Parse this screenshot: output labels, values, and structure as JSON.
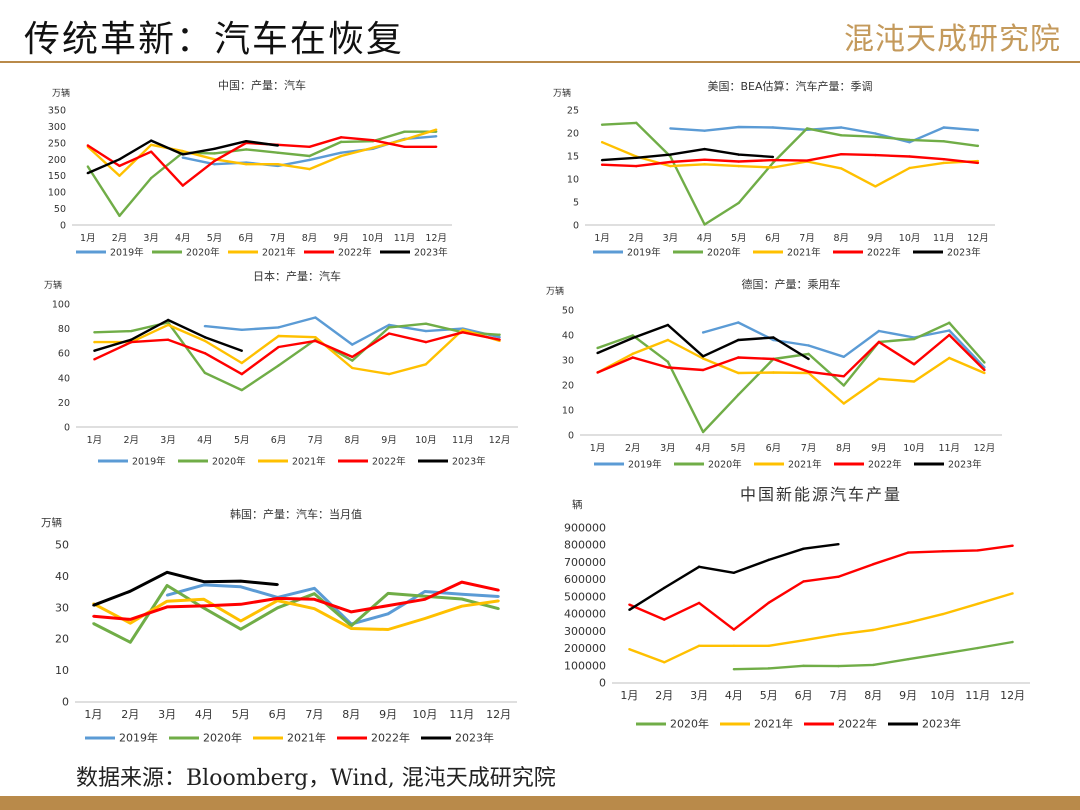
{
  "header": {
    "title": "传统革新：汽车在恢复",
    "logo_text": "混沌天成研究院"
  },
  "footer": {
    "source": "数据来源：Bloomberg，Wind, 混沌天成研究院"
  },
  "colors": {
    "2019年": "#5b9bd5",
    "2020年": "#70ad47",
    "2021年": "#ffc000",
    "2022年": "#ff0000",
    "2023年": "#000000",
    "accent": "#b98a4a"
  },
  "chart_data": [
    {
      "type": "line",
      "title": "中国：产量：汽车",
      "ylabel": "万辆",
      "categories": [
        "1月",
        "2月",
        "3月",
        "4月",
        "5月",
        "6月",
        "7月",
        "8月",
        "9月",
        "10月",
        "11月",
        "12月"
      ],
      "ylim": [
        0,
        350
      ],
      "yticks": [
        0,
        50,
        100,
        150,
        200,
        250,
        300,
        350
      ],
      "series": [
        {
          "name": "2019年",
          "values": [
            null,
            null,
            null,
            205,
            185,
            190,
            180,
            198,
            220,
            232,
            262,
            270
          ]
        },
        {
          "name": "2020年",
          "values": [
            178,
            28,
            143,
            220,
            218,
            230,
            220,
            210,
            253,
            255,
            284,
            284
          ]
        },
        {
          "name": "2021年",
          "values": [
            238,
            150,
            244,
            225,
            200,
            185,
            185,
            170,
            210,
            235,
            260,
            290
          ]
        },
        {
          "name": "2022年",
          "values": [
            242,
            180,
            223,
            120,
            195,
            250,
            244,
            238,
            267,
            258,
            238,
            238
          ]
        },
        {
          "name": "2023年",
          "values": [
            158,
            200,
            257,
            215,
            232,
            255,
            242,
            null,
            null,
            null,
            null,
            null
          ]
        }
      ]
    },
    {
      "type": "line",
      "title": "美国：BEA估算：汽车产量：季调",
      "ylabel": "万辆",
      "categories": [
        "1月",
        "2月",
        "3月",
        "4月",
        "5月",
        "6月",
        "7月",
        "8月",
        "9月",
        "10月",
        "11月",
        "12月"
      ],
      "ylim": [
        0,
        25
      ],
      "yticks": [
        0,
        5,
        10,
        15,
        20,
        25
      ],
      "series": [
        {
          "name": "2019年",
          "values": [
            null,
            null,
            21,
            20.5,
            21.3,
            21.2,
            20.7,
            21.2,
            19.9,
            18,
            21.2,
            20.6
          ]
        },
        {
          "name": "2020年",
          "values": [
            21.8,
            22.2,
            14.9,
            0.1,
            4.8,
            13.5,
            21,
            19.5,
            19.2,
            18.5,
            18.2,
            17.2
          ]
        },
        {
          "name": "2021年",
          "values": [
            18,
            14.9,
            12.8,
            13.2,
            12.8,
            12.5,
            13.8,
            12.3,
            8.4,
            12.4,
            13.5,
            13.9
          ]
        },
        {
          "name": "2022年",
          "values": [
            13.1,
            12.8,
            13.7,
            14.2,
            13.8,
            14.1,
            14,
            15.4,
            15.2,
            14.9,
            14.3,
            13.5
          ]
        },
        {
          "name": "2023年",
          "values": [
            14.1,
            14.6,
            15.3,
            16.5,
            15.3,
            14.8,
            null,
            null,
            null,
            null,
            null,
            null
          ]
        }
      ]
    },
    {
      "type": "line",
      "title": "日本：产量：汽车",
      "ylabel": "万辆",
      "categories": [
        "1月",
        "2月",
        "3月",
        "4月",
        "5月",
        "6月",
        "7月",
        "8月",
        "9月",
        "10月",
        "11月",
        "12月"
      ],
      "ylim": [
        0,
        100
      ],
      "yticks": [
        0,
        20,
        40,
        60,
        80,
        100
      ],
      "series": [
        {
          "name": "2019年",
          "values": [
            null,
            null,
            null,
            82,
            79,
            81,
            89,
            67,
            83,
            78,
            80,
            73
          ]
        },
        {
          "name": "2020年",
          "values": [
            77,
            78,
            85,
            44,
            30,
            50,
            71,
            54,
            81,
            84,
            77,
            75
          ]
        },
        {
          "name": "2021年",
          "values": [
            69,
            69,
            83,
            70,
            52,
            74,
            73,
            48,
            43,
            51,
            79,
            70
          ]
        },
        {
          "name": "2022年",
          "values": [
            55,
            69,
            71,
            60,
            43,
            65,
            70,
            57,
            76,
            69,
            77,
            71
          ]
        },
        {
          "name": "2023年",
          "values": [
            62,
            71,
            87,
            73,
            62,
            null,
            null,
            null,
            null,
            null,
            null,
            null
          ]
        }
      ]
    },
    {
      "type": "line",
      "title": "德国：产量：乘用车",
      "ylabel": "万辆",
      "categories": [
        "1月",
        "2月",
        "3月",
        "4月",
        "5月",
        "6月",
        "7月",
        "8月",
        "9月",
        "10月",
        "11月",
        "12月"
      ],
      "ylim": [
        0,
        50
      ],
      "yticks": [
        0,
        10,
        20,
        30,
        40,
        50
      ],
      "series": [
        {
          "name": "2019年",
          "values": [
            null,
            null,
            null,
            41,
            45,
            38,
            35.8,
            31.3,
            41.6,
            39,
            41.8,
            27
          ]
        },
        {
          "name": "2020年",
          "values": [
            34.8,
            39.8,
            29.3,
            1.2,
            16.1,
            30.4,
            32.4,
            19.8,
            37.2,
            38.4,
            44.9,
            29
          ]
        },
        {
          "name": "2021年",
          "values": [
            25,
            32.5,
            38,
            30.6,
            24.8,
            25,
            24.8,
            12.6,
            22.5,
            21.4,
            30.8,
            24.8
          ]
        },
        {
          "name": "2022年",
          "values": [
            25,
            31,
            27,
            26,
            31,
            30.4,
            25.3,
            23.5,
            37.2,
            28.3,
            40,
            26
          ]
        },
        {
          "name": "2023年",
          "values": [
            32.8,
            38.8,
            44,
            31.5,
            38,
            39,
            30.4,
            null,
            null,
            null,
            null,
            null
          ]
        }
      ]
    },
    {
      "type": "line",
      "title": "韩国：产量：汽车：当月值",
      "ylabel": "万辆",
      "categories": [
        "1月",
        "2月",
        "3月",
        "4月",
        "5月",
        "6月",
        "7月",
        "8月",
        "9月",
        "10月",
        "11月",
        "12月"
      ],
      "ylim": [
        0,
        50
      ],
      "yticks": [
        0,
        10,
        20,
        30,
        40,
        50
      ],
      "series": [
        {
          "name": "2019年",
          "values": [
            null,
            null,
            34,
            37.3,
            36.7,
            33.3,
            36.2,
            24.8,
            28.1,
            35.2,
            34.3,
            33.6
          ]
        },
        {
          "name": "2020年",
          "values": [
            25,
            19,
            37.1,
            29.9,
            23.2,
            30,
            34.5,
            24.3,
            34.6,
            33.7,
            32.8,
            29.7
          ]
        },
        {
          "name": "2021年",
          "values": [
            31.3,
            25.1,
            32.1,
            32.7,
            25.8,
            32.3,
            29.7,
            23.4,
            23.1,
            26.6,
            30.5,
            32.2
          ]
        },
        {
          "name": "2022年",
          "values": [
            27.3,
            26.3,
            30.3,
            30.6,
            31.1,
            33,
            32.7,
            28.7,
            30.7,
            32.7,
            38.2,
            35.6
          ]
        },
        {
          "name": "2023年",
          "values": [
            30.8,
            35.3,
            41.3,
            38.3,
            38.5,
            37.4,
            null,
            null,
            null,
            null,
            null,
            null
          ]
        }
      ]
    },
    {
      "type": "line",
      "title": "中国新能源汽车产量",
      "ylabel": "辆",
      "categories": [
        "1月",
        "2月",
        "3月",
        "4月",
        "5月",
        "6月",
        "7月",
        "8月",
        "9月",
        "10月",
        "11月",
        "12月"
      ],
      "ylim": [
        0,
        900000
      ],
      "yticks": [
        0,
        100000,
        200000,
        300000,
        400000,
        500000,
        600000,
        700000,
        800000,
        900000
      ],
      "series": [
        {
          "name": "2020年",
          "values": [
            null,
            null,
            null,
            80000,
            85000,
            100000,
            98000,
            105000,
            138000,
            170000,
            203000,
            238000
          ]
        },
        {
          "name": "2021年",
          "values": [
            196000,
            120000,
            216000,
            216000,
            216000,
            248000,
            282000,
            308000,
            350000,
            400000,
            460000,
            520000
          ]
        },
        {
          "name": "2022年",
          "values": [
            455000,
            368000,
            465000,
            310000,
            466000,
            590000,
            617000,
            690000,
            757000,
            765000,
            770000,
            797000
          ]
        },
        {
          "name": "2023年",
          "values": [
            425000,
            552000,
            675000,
            640000,
            715000,
            780000,
            806000,
            null,
            null,
            null,
            null,
            null
          ]
        }
      ]
    }
  ]
}
